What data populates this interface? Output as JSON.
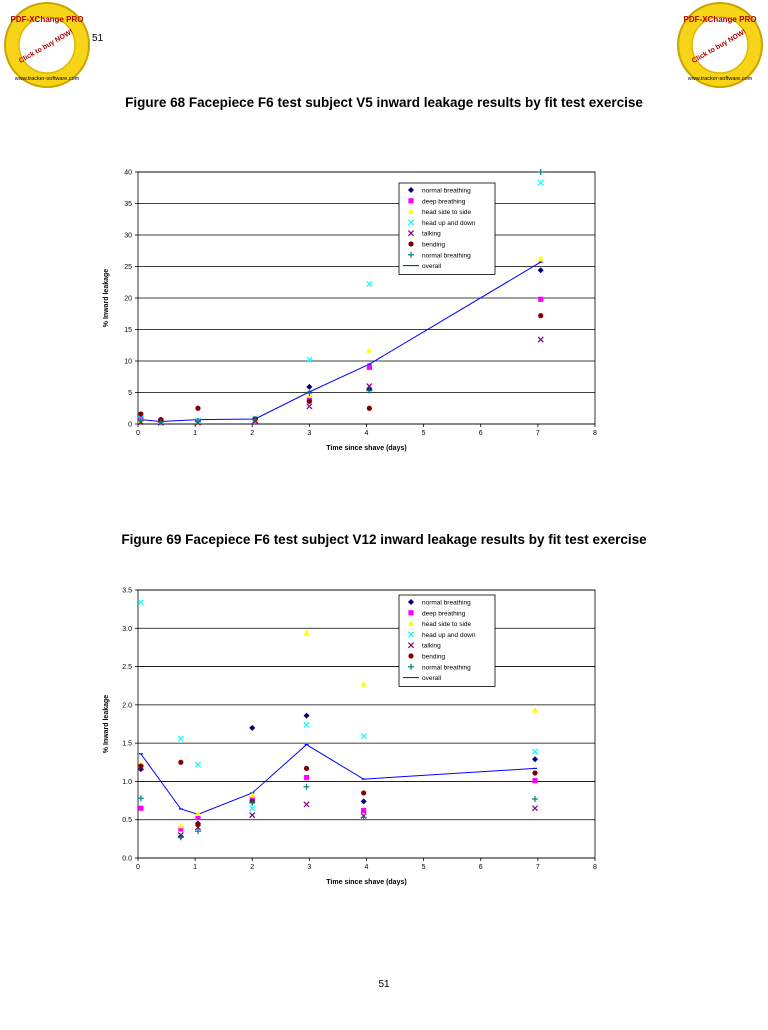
{
  "page": {
    "number_top": "51",
    "number_bottom": "51"
  },
  "stamp": {
    "text_top": "PDF-XChange PRO",
    "text_middle": "Click to buy NOW!",
    "text_bottom": "www.tracker-software.com"
  },
  "figures": [
    {
      "caption": "Figure 68 Facepiece F6 test subject V5 inward leakage results by fit test exercise"
    },
    {
      "caption": "Figure 69 Facepiece F6 test subject V12 inward leakage results by fit test exercise"
    }
  ],
  "colors": {
    "normal breathing": "#000080",
    "deep breathing": "#ff00ff",
    "head side to side": "#ffff00",
    "head up and down": "#00ffff",
    "talking": "#800080",
    "bending": "#800000",
    "normal breathing 2": "#008080",
    "overall": "#0000ff"
  },
  "chart_data": [
    {
      "type": "scatter",
      "xlabel": "Time since shave (days)",
      "ylabel": "% Inward leakage",
      "xlim": [
        0,
        8
      ],
      "ylim": [
        0,
        40
      ],
      "xticks": [
        "0",
        "1",
        "2",
        "3",
        "4",
        "5",
        "6",
        "7",
        "8"
      ],
      "yticks": [
        "0",
        "5",
        "10",
        "15",
        "20",
        "25",
        "30",
        "35",
        "40"
      ],
      "grid": "horizontal",
      "legend_position": "top-right",
      "series": [
        {
          "name": "normal breathing",
          "marker": "diamond",
          "points": [
            [
              0.05,
              1.0
            ],
            [
              0.4,
              0.7
            ],
            [
              1.05,
              0.5
            ],
            [
              2.05,
              0.8
            ],
            [
              3.0,
              5.9
            ],
            [
              4.05,
              5.5
            ],
            [
              7.05,
              24.4
            ]
          ]
        },
        {
          "name": "deep breathing",
          "marker": "square",
          "points": [
            [
              0.05,
              0.8
            ],
            [
              0.4,
              0.5
            ],
            [
              1.05,
              0.3
            ],
            [
              2.05,
              0.6
            ],
            [
              3.0,
              4.0
            ],
            [
              4.05,
              9.0
            ],
            [
              7.05,
              19.8
            ]
          ]
        },
        {
          "name": "head side to side",
          "marker": "triangle",
          "points": [
            [
              0.05,
              0.5
            ],
            [
              0.4,
              0.1
            ],
            [
              1.05,
              0.2
            ],
            [
              2.05,
              0.7
            ],
            [
              3.0,
              4.5
            ],
            [
              4.05,
              11.7
            ],
            [
              7.05,
              26.3
            ]
          ]
        },
        {
          "name": "head up and down",
          "marker": "x",
          "points": [
            [
              0.05,
              0.9
            ],
            [
              0.4,
              0.4
            ],
            [
              1.05,
              0.6
            ],
            [
              2.05,
              0.9
            ],
            [
              3.0,
              10.2
            ],
            [
              4.05,
              22.2
            ],
            [
              7.05,
              38.3
            ]
          ]
        },
        {
          "name": "talking",
          "marker": "x",
          "points": [
            [
              0.05,
              0.3
            ],
            [
              0.4,
              0.2
            ],
            [
              1.05,
              0.2
            ],
            [
              2.05,
              0.5
            ],
            [
              3.0,
              2.8
            ],
            [
              4.05,
              6.0
            ],
            [
              7.05,
              13.4
            ]
          ]
        },
        {
          "name": "bending",
          "marker": "circle",
          "points": [
            [
              0.05,
              1.6
            ],
            [
              0.4,
              0.7
            ],
            [
              1.05,
              2.5
            ],
            [
              2.05,
              0.8
            ],
            [
              3.0,
              3.6
            ],
            [
              4.05,
              2.5
            ],
            [
              7.05,
              17.2
            ]
          ]
        },
        {
          "name": "normal breathing",
          "marker": "plus",
          "points": [
            [
              0.05,
              0.6
            ],
            [
              0.4,
              0.3
            ],
            [
              1.05,
              0.4
            ],
            [
              2.05,
              0.7
            ],
            [
              3.0,
              4.9
            ],
            [
              4.05,
              5.3
            ],
            [
              7.05,
              40.0
            ]
          ]
        }
      ],
      "overall": {
        "name": "overall",
        "points": [
          [
            0.05,
            0.7
          ],
          [
            0.4,
            0.4
          ],
          [
            1.05,
            0.7
          ],
          [
            2.05,
            0.8
          ],
          [
            3.0,
            5.1
          ],
          [
            4.05,
            9.5
          ],
          [
            7.05,
            25.7
          ]
        ]
      }
    },
    {
      "type": "scatter",
      "xlabel": "Time since shave (days)",
      "ylabel": "% Inward leakage",
      "xlim": [
        0,
        8
      ],
      "ylim": [
        0,
        3.5
      ],
      "xticks": [
        "0",
        "1",
        "2",
        "3",
        "4",
        "5",
        "6",
        "7",
        "8"
      ],
      "yticks": [
        "0.0",
        "0.5",
        "1.0",
        "1.5",
        "2.0",
        "2.5",
        "3.0",
        "3.5"
      ],
      "grid": "horizontal",
      "legend_position": "top-right",
      "series": [
        {
          "name": "normal breathing",
          "marker": "diamond",
          "points": [
            [
              0.05,
              1.16
            ],
            [
              0.75,
              0.28
            ],
            [
              1.05,
              0.45
            ],
            [
              2.0,
              1.7
            ],
            [
              2.95,
              1.86
            ],
            [
              3.95,
              0.74
            ],
            [
              6.95,
              1.29
            ]
          ]
        },
        {
          "name": "deep breathing",
          "marker": "square",
          "points": [
            [
              0.05,
              0.65
            ],
            [
              0.75,
              0.38
            ],
            [
              1.05,
              0.53
            ],
            [
              2.0,
              0.78
            ],
            [
              2.95,
              1.05
            ],
            [
              3.95,
              0.62
            ],
            [
              6.95,
              1.01
            ]
          ]
        },
        {
          "name": "head side to side",
          "marker": "triangle",
          "points": [
            [
              0.05,
              1.22
            ],
            [
              0.75,
              0.42
            ],
            [
              1.05,
              0.58
            ],
            [
              2.0,
              0.82
            ],
            [
              2.95,
              2.94
            ],
            [
              3.95,
              2.27
            ],
            [
              6.95,
              1.93
            ]
          ]
        },
        {
          "name": "head up and down",
          "marker": "x",
          "points": [
            [
              0.05,
              3.34
            ],
            [
              0.75,
              1.56
            ],
            [
              1.05,
              1.22
            ],
            [
              2.0,
              0.65
            ],
            [
              2.95,
              1.74
            ],
            [
              3.95,
              1.59
            ],
            [
              6.95,
              1.39
            ]
          ]
        },
        {
          "name": "talking",
          "marker": "x",
          "points": [
            [
              0.05,
              1.18
            ],
            [
              0.75,
              0.3
            ],
            [
              1.05,
              0.4
            ],
            [
              2.0,
              0.56
            ],
            [
              2.95,
              0.7
            ],
            [
              3.95,
              0.55
            ],
            [
              6.95,
              0.65
            ]
          ]
        },
        {
          "name": "bending",
          "marker": "circle",
          "points": [
            [
              0.05,
              1.2
            ],
            [
              0.75,
              1.25
            ],
            [
              1.05,
              0.44
            ],
            [
              2.0,
              0.74
            ],
            [
              2.95,
              1.17
            ],
            [
              3.95,
              0.85
            ],
            [
              6.95,
              1.11
            ]
          ]
        },
        {
          "name": "normal breathing",
          "marker": "plus",
          "points": [
            [
              0.05,
              0.78
            ],
            [
              0.75,
              0.27
            ],
            [
              1.05,
              0.35
            ],
            [
              2.0,
              0.72
            ],
            [
              2.95,
              0.93
            ],
            [
              3.95,
              0.53
            ],
            [
              6.95,
              0.77
            ]
          ]
        }
      ],
      "overall": {
        "name": "overall",
        "points": [
          [
            0.05,
            1.36
          ],
          [
            0.75,
            0.64
          ],
          [
            1.05,
            0.57
          ],
          [
            2.0,
            0.85
          ],
          [
            2.95,
            1.48
          ],
          [
            3.95,
            1.03
          ],
          [
            6.95,
            1.17
          ]
        ]
      }
    }
  ]
}
